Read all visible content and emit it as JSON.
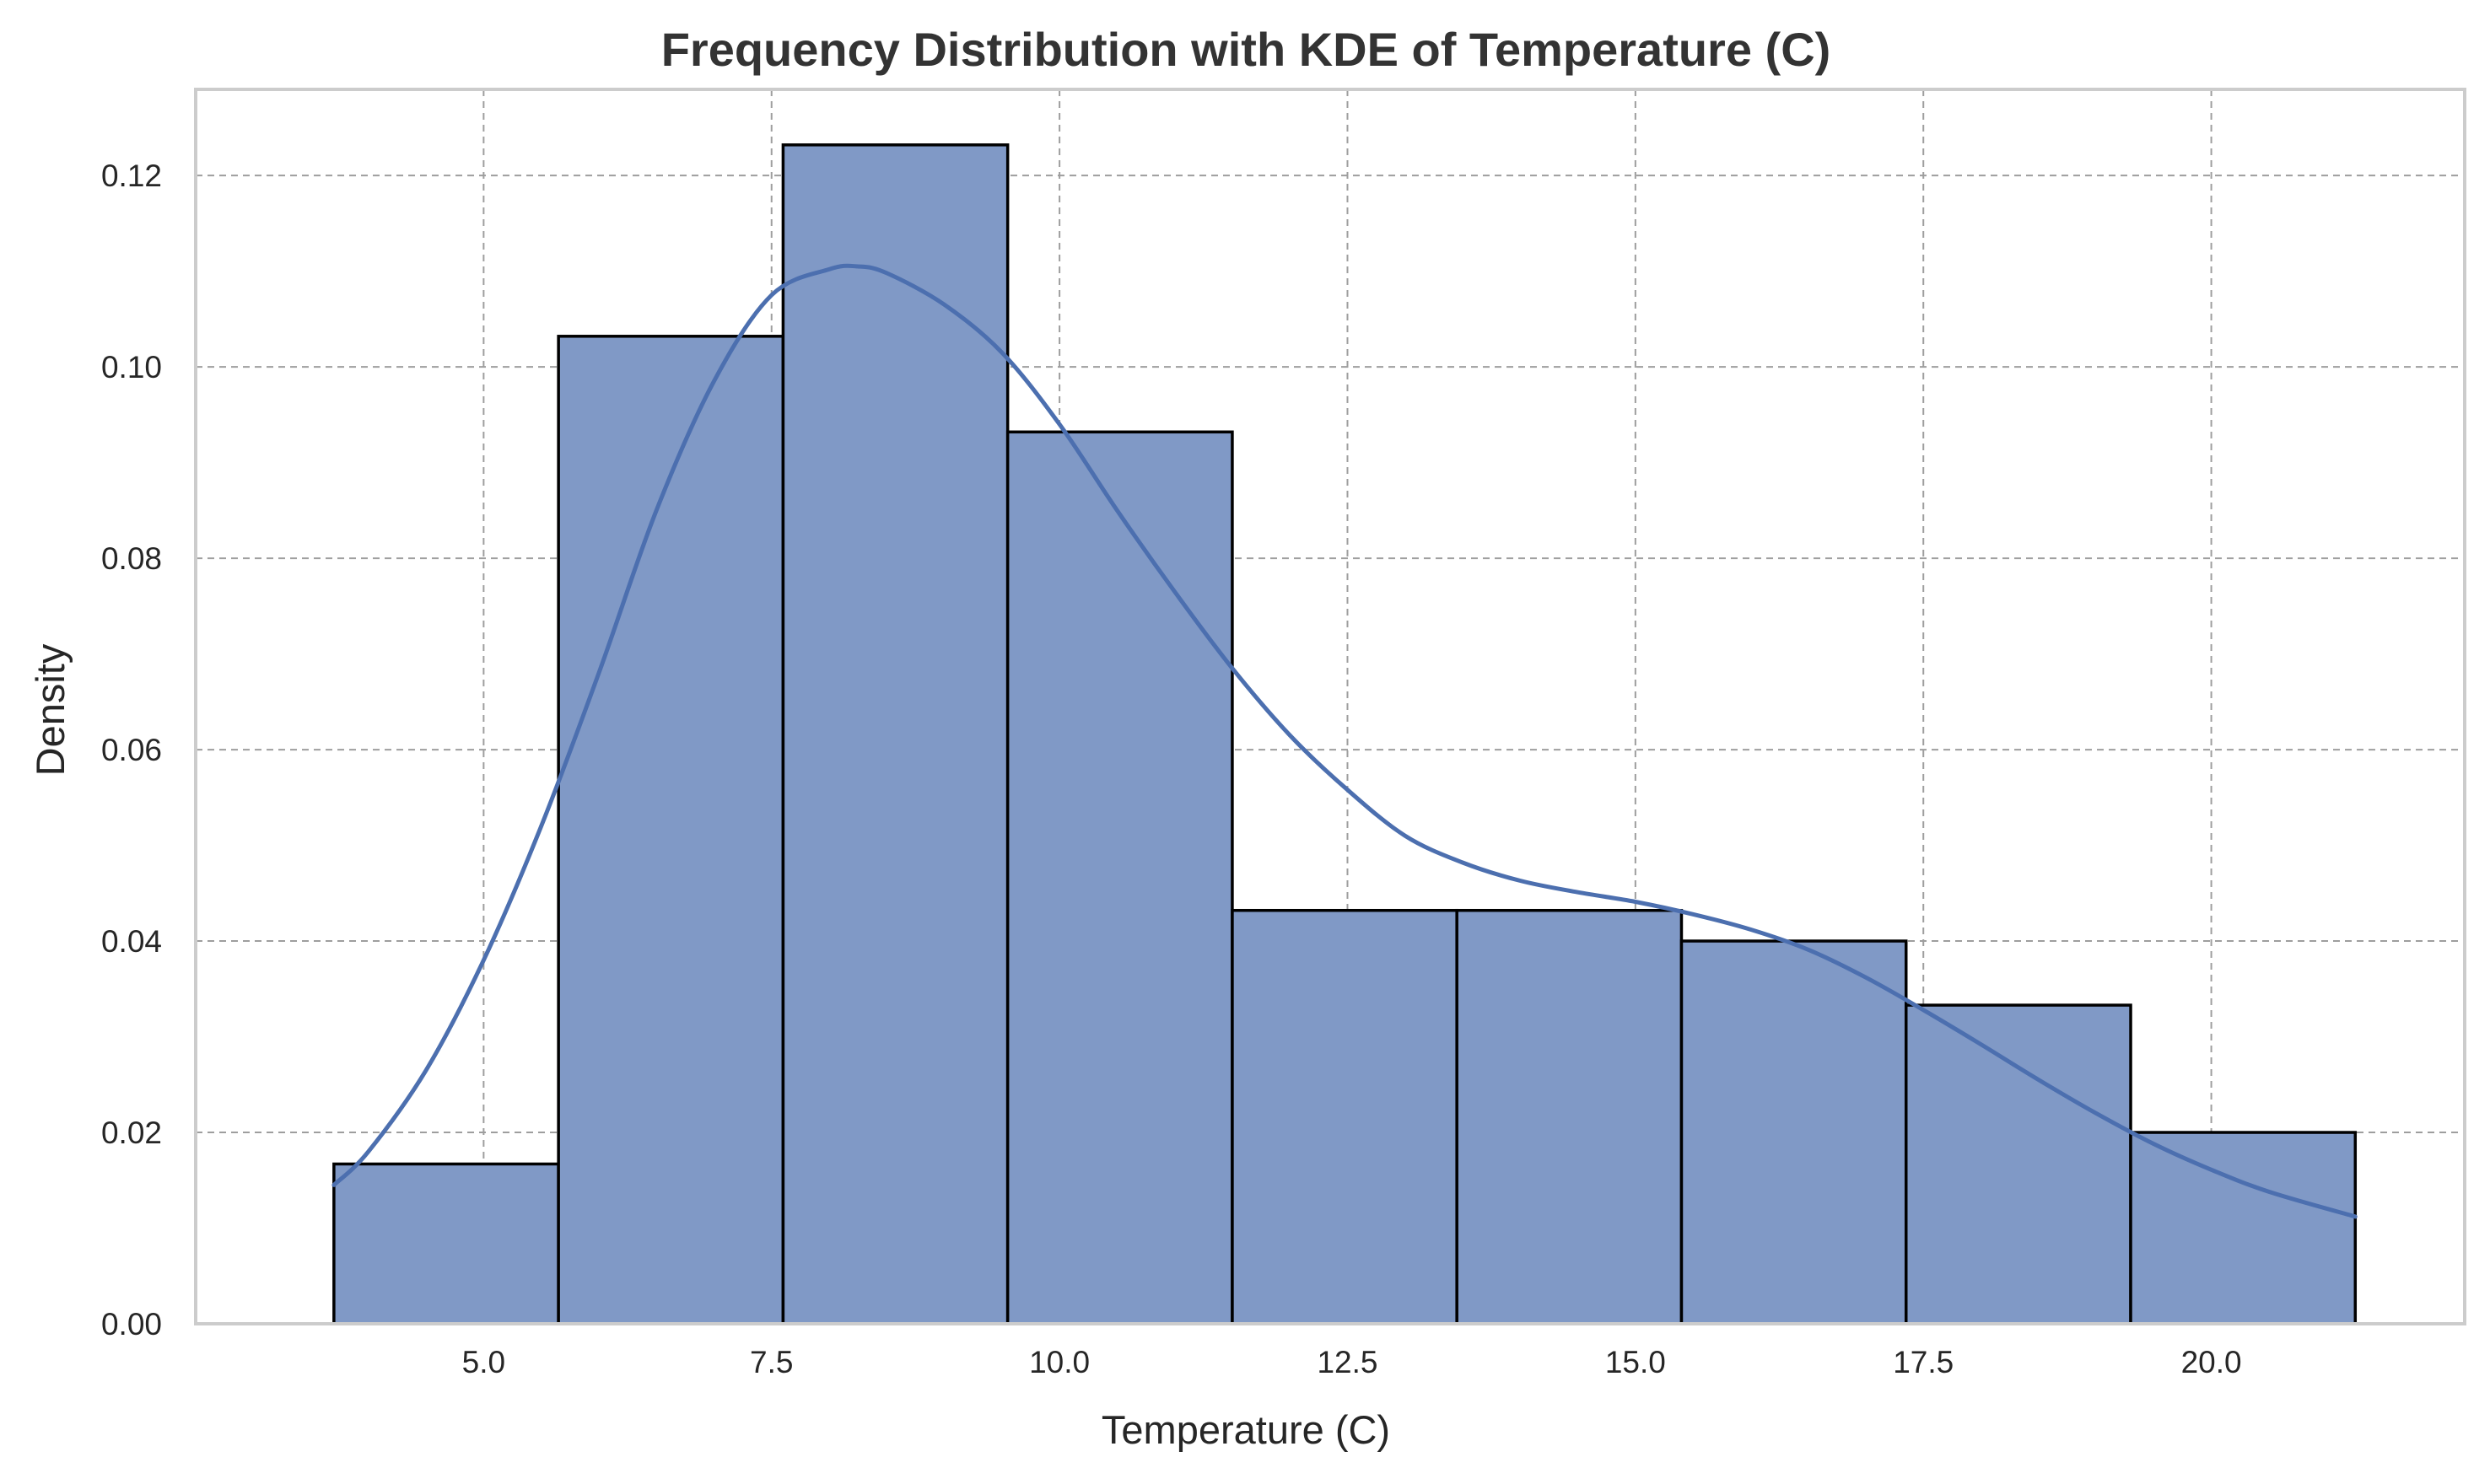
{
  "chart_data": {
    "type": "bar",
    "title": "Frequency Distribution with KDE of Temperature (C)",
    "xlabel": "Temperature (C)",
    "ylabel": "Density",
    "xlim": [
      2.5,
      22.2
    ],
    "ylim": [
      0,
      0.129
    ],
    "x_ticks": [
      5.0,
      7.5,
      10.0,
      12.5,
      15.0,
      17.5,
      20.0
    ],
    "x_tick_labels": [
      "5.0",
      "7.5",
      "10.0",
      "12.5",
      "15.0",
      "17.5",
      "20.0"
    ],
    "y_ticks": [
      0.0,
      0.02,
      0.04,
      0.06,
      0.08,
      0.1,
      0.12
    ],
    "y_tick_labels": [
      "0.00",
      "0.02",
      "0.04",
      "0.06",
      "0.08",
      "0.10",
      "0.12"
    ],
    "grid": true,
    "histogram": {
      "bin_edges": [
        3.7,
        5.65,
        7.6,
        9.55,
        11.5,
        13.45,
        15.4,
        17.35,
        19.3,
        21.25
      ],
      "densities": [
        0.0167,
        0.1032,
        0.1232,
        0.0932,
        0.0432,
        0.0432,
        0.04,
        0.0333,
        0.02
      ]
    },
    "kde": {
      "x": [
        3.7,
        4.0,
        4.5,
        5.0,
        5.5,
        6.0,
        6.5,
        7.0,
        7.5,
        8.0,
        8.25,
        8.5,
        9.0,
        9.5,
        10.0,
        10.5,
        11.0,
        11.5,
        12.0,
        12.5,
        13.0,
        13.5,
        14.0,
        14.5,
        15.0,
        15.5,
        16.0,
        16.5,
        17.0,
        17.5,
        18.0,
        18.5,
        19.0,
        19.5,
        20.0,
        20.5,
        21.25
      ],
      "y": [
        0.0145,
        0.018,
        0.0265,
        0.038,
        0.052,
        0.068,
        0.085,
        0.0985,
        0.1075,
        0.1102,
        0.1105,
        0.1098,
        0.1065,
        0.1015,
        0.094,
        0.085,
        0.0765,
        0.0685,
        0.0615,
        0.0558,
        0.051,
        0.0482,
        0.0463,
        0.0451,
        0.0441,
        0.0428,
        0.0412,
        0.0391,
        0.0362,
        0.0328,
        0.0292,
        0.0255,
        0.022,
        0.0188,
        0.0161,
        0.0138,
        0.0112
      ]
    },
    "colors": {
      "bar_fill": "#8099c6",
      "bar_edge": "#000000",
      "kde_line": "#4c6faf",
      "grid": "#9e9e9e",
      "spine": "#cccccc",
      "title_text": "#333333",
      "axis_text": "#262626"
    }
  }
}
